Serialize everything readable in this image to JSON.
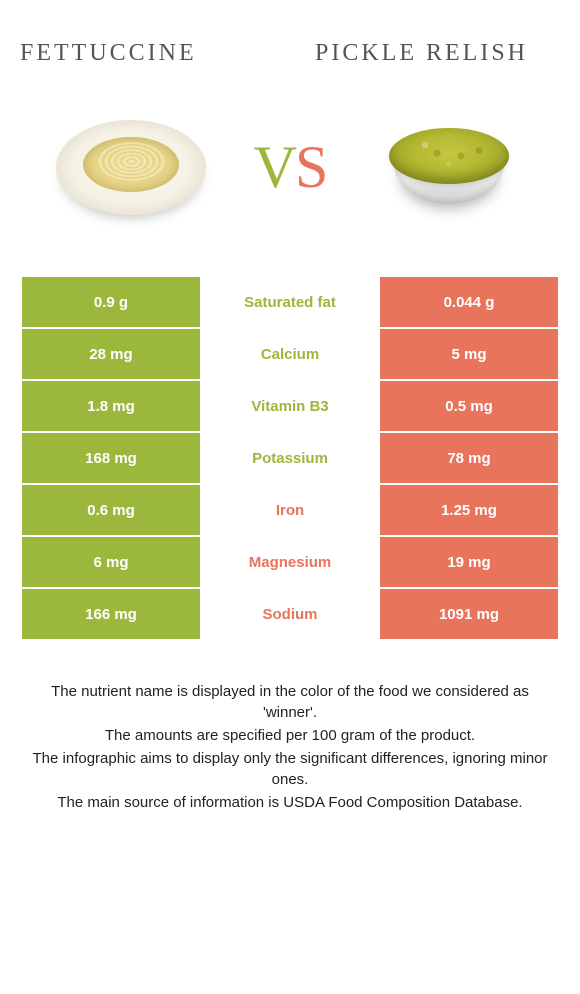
{
  "foods": {
    "left": {
      "name": "FETTUCCINE"
    },
    "right": {
      "name": "PICKLE RELISH"
    }
  },
  "vs": {
    "v": "V",
    "s": "S"
  },
  "colors": {
    "left": "#9cb83c",
    "right": "#e8745b"
  },
  "rows": [
    {
      "nutrient": "Saturated fat",
      "left": "0.9 g",
      "right": "0.044 g",
      "winner": "left"
    },
    {
      "nutrient": "Calcium",
      "left": "28 mg",
      "right": "5 mg",
      "winner": "left"
    },
    {
      "nutrient": "Vitamin B3",
      "left": "1.8 mg",
      "right": "0.5 mg",
      "winner": "left"
    },
    {
      "nutrient": "Potassium",
      "left": "168 mg",
      "right": "78 mg",
      "winner": "left"
    },
    {
      "nutrient": "Iron",
      "left": "0.6 mg",
      "right": "1.25 mg",
      "winner": "right"
    },
    {
      "nutrient": "Magnesium",
      "left": "6 mg",
      "right": "19 mg",
      "winner": "right"
    },
    {
      "nutrient": "Sodium",
      "left": "166 mg",
      "right": "1091 mg",
      "winner": "right"
    }
  ],
  "footer": {
    "l1": "The nutrient name is displayed in the color of the food we considered as 'winner'.",
    "l2": "The amounts are specified per 100 gram of the product.",
    "l3": "The infographic aims to display only the significant differences, ignoring minor ones.",
    "l4": "The main source of information is USDA Food Composition Database."
  }
}
